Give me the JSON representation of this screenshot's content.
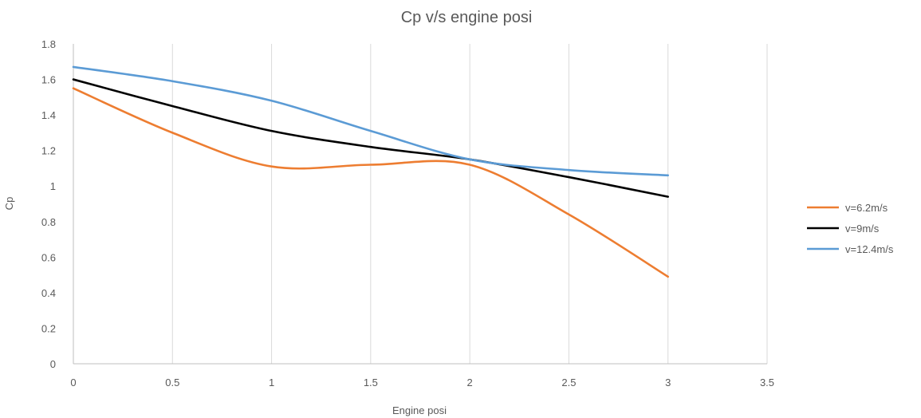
{
  "chart_data": {
    "type": "line",
    "title": "Cp v/s engine posi",
    "xlabel": "Engine posi",
    "ylabel": "Cp",
    "xlim": [
      0,
      3.5
    ],
    "ylim": [
      0,
      1.8
    ],
    "x_ticks": [
      "0",
      "0.5",
      "1",
      "1.5",
      "2",
      "2.5",
      "3",
      "3.5"
    ],
    "x_tick_values": [
      0,
      0.5,
      1,
      1.5,
      2,
      2.5,
      3,
      3.5
    ],
    "y_ticks": [
      "0",
      "0.2",
      "0.4",
      "0.6",
      "0.8",
      "1",
      "1.2",
      "1.4",
      "1.6",
      "1.8"
    ],
    "y_tick_values": [
      0,
      0.2,
      0.4,
      0.6,
      0.8,
      1,
      1.2,
      1.4,
      1.6,
      1.8
    ],
    "grid": "vertical",
    "legend_position": "right",
    "smooth": true,
    "series": [
      {
        "name": "v=6.2m/s",
        "color": "#ed7d31",
        "x": [
          0,
          0.5,
          1,
          1.5,
          2,
          2.5,
          3
        ],
        "y": [
          1.55,
          1.3,
          1.11,
          1.12,
          1.12,
          0.84,
          0.49
        ]
      },
      {
        "name": "v=9m/s",
        "color": "#000000",
        "x": [
          0,
          0.5,
          1,
          1.5,
          2,
          2.5,
          3
        ],
        "y": [
          1.6,
          1.45,
          1.31,
          1.22,
          1.15,
          1.05,
          0.94
        ]
      },
      {
        "name": "v=12.4m/s",
        "color": "#5b9bd5",
        "x": [
          0,
          0.5,
          1,
          1.5,
          2,
          2.5,
          3
        ],
        "y": [
          1.67,
          1.59,
          1.48,
          1.31,
          1.15,
          1.09,
          1.06
        ]
      }
    ]
  }
}
